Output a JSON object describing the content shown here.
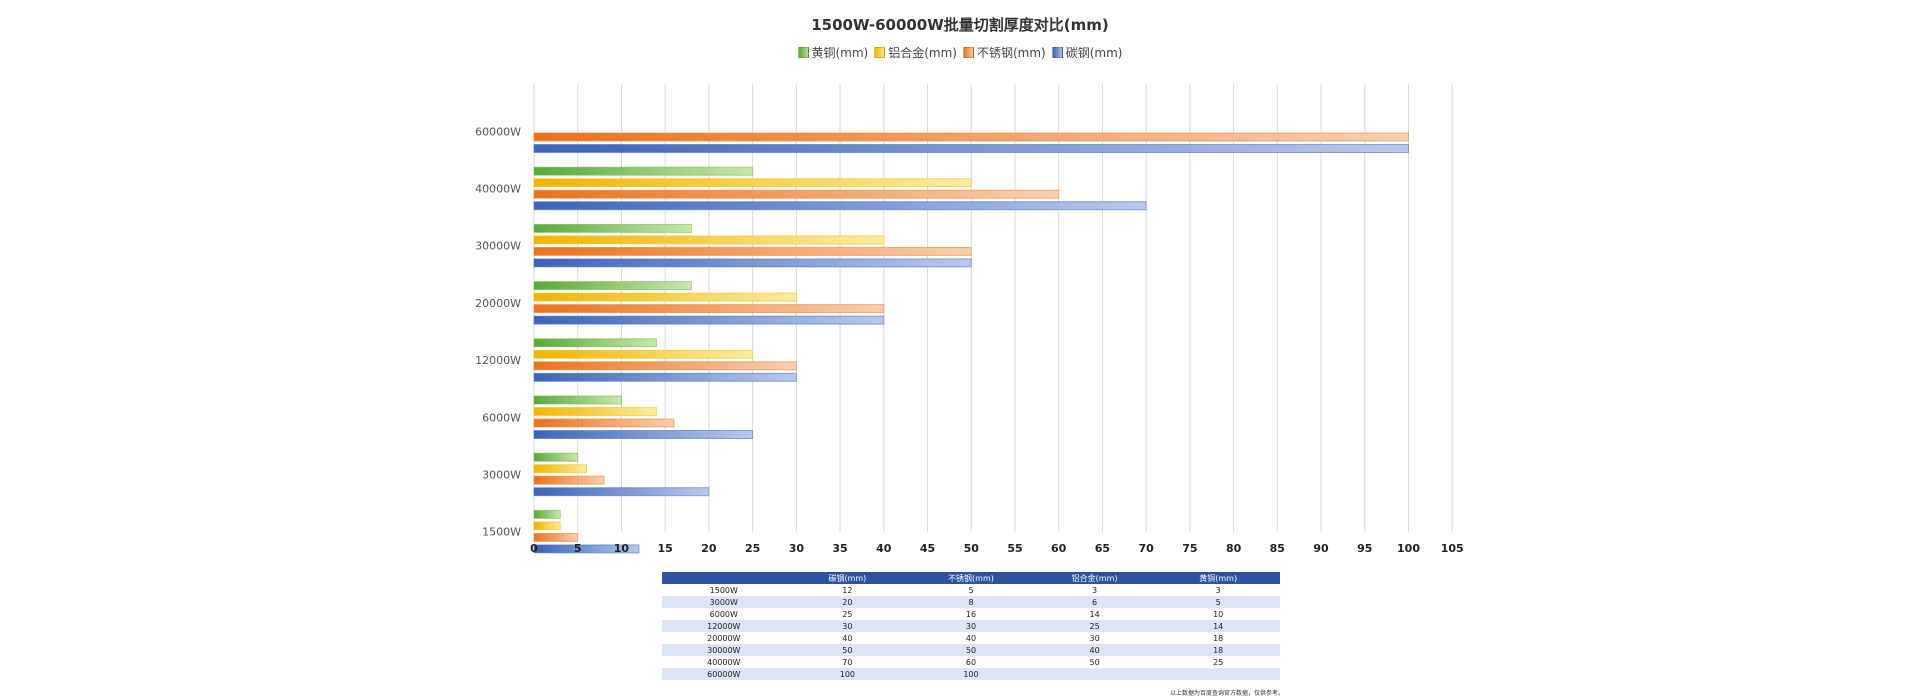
{
  "chart_data": {
    "type": "bar",
    "orientation": "horizontal",
    "title": "1500W-60000W批量切割厚度对比(mm)",
    "categories": [
      "60000W",
      "40000W",
      "30000W",
      "20000W",
      "12000W",
      "6000W",
      "3000W",
      "1500W"
    ],
    "series": [
      {
        "name": "黄铜(mm)",
        "color": "#76bb47",
        "values": [
          null,
          25,
          18,
          18,
          14,
          10,
          5,
          3
        ]
      },
      {
        "name": "铝合金(mm)",
        "color": "#f5c21b",
        "values": [
          null,
          50,
          40,
          30,
          25,
          14,
          6,
          3
        ]
      },
      {
        "name": "不锈钢(mm)",
        "color": "#ee8233",
        "values": [
          100,
          60,
          50,
          40,
          30,
          16,
          8,
          5
        ]
      },
      {
        "name": "碳钢(mm)",
        "color": "#4f75c6",
        "values": [
          100,
          70,
          50,
          40,
          30,
          25,
          20,
          12
        ]
      }
    ],
    "xlim": [
      0,
      105
    ],
    "xticks": [
      0,
      5,
      10,
      15,
      20,
      25,
      30,
      35,
      40,
      45,
      50,
      55,
      60,
      65,
      70,
      75,
      80,
      85,
      90,
      95,
      100,
      105
    ],
    "grid": true,
    "legend": "top-center"
  },
  "table": {
    "headers": [
      "",
      "碳钢(mm)",
      "不锈钢(mm)",
      "铝合金(mm)",
      "黄铜(mm)"
    ],
    "rows": [
      [
        "1500W",
        "12",
        "5",
        "3",
        "3"
      ],
      [
        "3000W",
        "20",
        "8",
        "6",
        "5"
      ],
      [
        "6000W",
        "25",
        "16",
        "14",
        "10"
      ],
      [
        "12000W",
        "30",
        "30",
        "25",
        "14"
      ],
      [
        "20000W",
        "40",
        "40",
        "30",
        "18"
      ],
      [
        "30000W",
        "50",
        "50",
        "40",
        "18"
      ],
      [
        "40000W",
        "70",
        "60",
        "50",
        "25"
      ],
      [
        "60000W",
        "100",
        "100",
        "",
        ""
      ]
    ]
  },
  "footnote": "以上数据为百度查询官方数据，仅供参考。"
}
